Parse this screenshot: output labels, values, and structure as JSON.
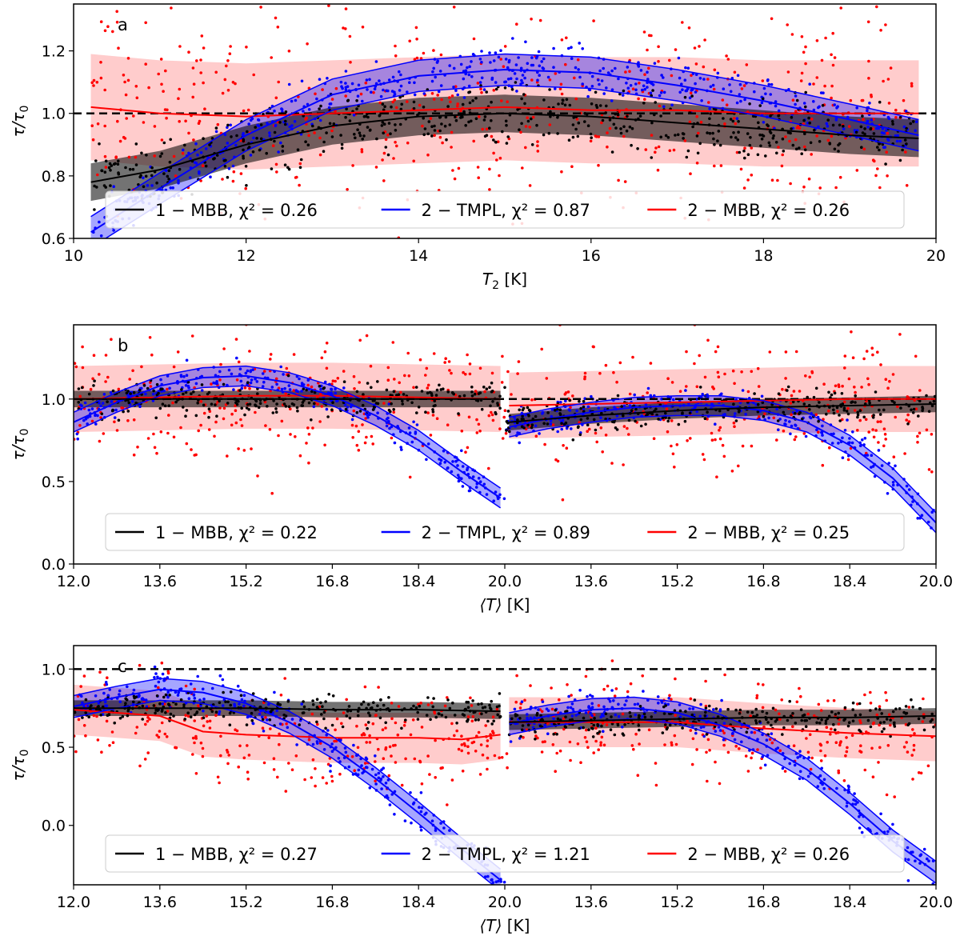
{
  "chart_data": [
    {
      "type": "scatter",
      "panel_label": "a",
      "xlabel": "T",
      "xlabel_sub": "2",
      "xlabel_unit": " [K]",
      "ylabel": "τ/τ",
      "ylabel_sub": "0",
      "xlim": [
        10,
        20
      ],
      "ylim": [
        0.6,
        1.35
      ],
      "xticks": [
        10,
        12,
        14,
        16,
        18,
        20
      ],
      "xtick_labels": [
        "10",
        "12",
        "14",
        "16",
        "18",
        "20"
      ],
      "yticks": [
        0.6,
        0.8,
        1.0,
        1.2
      ],
      "ytick_labels": [
        "0.6",
        "0.8",
        "1.0",
        "1.2"
      ],
      "reference_line": 1.0,
      "segments": [
        [
          10.2,
          19.8
        ]
      ],
      "legend": [
        "1 − MBB, χ² = 0.26",
        "2 − TMPL, χ² = 0.87",
        "2 − MBB, χ² = 0.26"
      ],
      "series": [
        {
          "name": "1-MBB",
          "color": "#000000",
          "x": [
            10.2,
            11,
            12,
            13,
            14,
            15,
            16,
            17,
            18,
            19,
            19.8
          ],
          "median": [
            0.78,
            0.82,
            0.9,
            0.96,
            0.99,
            1.0,
            0.99,
            0.97,
            0.95,
            0.93,
            0.92
          ],
          "band": 0.06,
          "scatter": 0.05
        },
        {
          "name": "2-TMPL",
          "color": "#0000ff",
          "x": [
            10.2,
            11,
            12,
            13,
            14,
            15,
            16,
            17,
            18,
            19,
            19.8
          ],
          "median": [
            0.62,
            0.76,
            0.93,
            1.06,
            1.12,
            1.14,
            1.13,
            1.09,
            1.04,
            0.98,
            0.93
          ],
          "band": 0.05,
          "scatter": 0.04
        },
        {
          "name": "2-MBB",
          "color": "#ff0000",
          "x": [
            10.2,
            11,
            12,
            13,
            14,
            15,
            16,
            17,
            18,
            19,
            19.8
          ],
          "median": [
            1.02,
            1.0,
            0.99,
            1.0,
            1.01,
            1.02,
            1.01,
            1.01,
            1.0,
            1.0,
            1.0
          ],
          "band": 0.17,
          "scatter": 0.16
        }
      ]
    },
    {
      "type": "scatter",
      "panel_label": "b",
      "xlabel": "⟨T⟩",
      "xlabel_sub": "",
      "xlabel_unit": " [K]",
      "ylabel": "τ/τ",
      "ylabel_sub": "0",
      "xlim": [
        0,
        2
      ],
      "ylim": [
        0.0,
        1.45
      ],
      "xticks": [
        0,
        0.2,
        0.4,
        0.6,
        0.8,
        1.0,
        1.2,
        1.4,
        1.6,
        1.8,
        2.0
      ],
      "xtick_labels": [
        "12.0",
        "13.6",
        "15.2",
        "16.8",
        "18.4",
        "20.0",
        "13.6",
        "15.2",
        "16.8",
        "18.4",
        "20.0"
      ],
      "yticks": [
        0.0,
        0.5,
        1.0
      ],
      "ytick_labels": [
        "0.0",
        "0.5",
        "1.0"
      ],
      "reference_line": 1.0,
      "segments": [
        [
          0,
          1.0
        ],
        [
          1.0,
          2.0
        ]
      ],
      "legend": [
        "1 − MBB, χ² = 0.22",
        "2 − TMPL, χ² = 0.89",
        "2 − MBB, χ² = 0.25"
      ],
      "series": [
        {
          "name": "1-MBB",
          "color": "#000000",
          "x": [
            0,
            0.2,
            0.4,
            0.6,
            0.8,
            0.99,
            1.01,
            1.2,
            1.4,
            1.6,
            1.8,
            2.0
          ],
          "median": [
            1.0,
            1.0,
            1.0,
            1.0,
            1.0,
            1.0,
            0.86,
            0.9,
            0.93,
            0.95,
            0.96,
            0.97
          ],
          "band": 0.05,
          "scatter": 0.05
        },
        {
          "name": "2-TMPL",
          "color": "#0000ff",
          "x": [
            0,
            0.1,
            0.2,
            0.3,
            0.4,
            0.5,
            0.6,
            0.7,
            0.8,
            0.9,
            0.99,
            1.01,
            1.1,
            1.2,
            1.3,
            1.4,
            1.5,
            1.6,
            1.7,
            1.8,
            1.9,
            2.0
          ],
          "median": [
            0.86,
            0.98,
            1.08,
            1.13,
            1.14,
            1.1,
            1.02,
            0.9,
            0.75,
            0.56,
            0.4,
            0.83,
            0.88,
            0.92,
            0.95,
            0.96,
            0.96,
            0.93,
            0.86,
            0.72,
            0.52,
            0.25
          ],
          "band": 0.06,
          "scatter": 0.05
        },
        {
          "name": "2-MBB",
          "color": "#ff0000",
          "x": [
            0,
            0.2,
            0.4,
            0.6,
            0.8,
            0.99,
            1.01,
            1.2,
            1.4,
            1.6,
            1.8,
            2.0
          ],
          "median": [
            1.0,
            1.01,
            1.02,
            1.02,
            1.01,
            1.0,
            0.96,
            0.97,
            0.98,
            0.99,
            1.0,
            1.0
          ],
          "band": 0.2,
          "scatter": 0.22
        }
      ]
    },
    {
      "type": "scatter",
      "panel_label": "c",
      "xlabel": "⟨T⟩",
      "xlabel_sub": "",
      "xlabel_unit": " [K]",
      "ylabel": "τ/τ",
      "ylabel_sub": "0",
      "xlim": [
        0,
        2
      ],
      "ylim": [
        -0.38,
        1.15
      ],
      "xticks": [
        0,
        0.2,
        0.4,
        0.6,
        0.8,
        1.0,
        1.2,
        1.4,
        1.6,
        1.8,
        2.0
      ],
      "xtick_labels": [
        "12.0",
        "13.6",
        "15.2",
        "16.8",
        "18.4",
        "20.0",
        "13.6",
        "15.2",
        "16.8",
        "18.4",
        "20.0"
      ],
      "yticks": [
        0.0,
        0.5,
        1.0
      ],
      "ytick_labels": [
        "0.0",
        "0.5",
        "1.0"
      ],
      "reference_line": 1.0,
      "segments": [
        [
          0,
          1.0
        ],
        [
          1.0,
          2.0
        ]
      ],
      "legend": [
        "1 − MBB, χ² = 0.27",
        "2 − TMPL, χ² = 1.21",
        "2 − MBB, χ² = 0.26"
      ],
      "series": [
        {
          "name": "1-MBB",
          "color": "#000000",
          "x": [
            0,
            0.2,
            0.4,
            0.6,
            0.8,
            0.99,
            1.01,
            1.2,
            1.4,
            1.6,
            1.8,
            2.0
          ],
          "median": [
            0.75,
            0.75,
            0.75,
            0.74,
            0.74,
            0.73,
            0.66,
            0.67,
            0.68,
            0.69,
            0.69,
            0.7
          ],
          "band": 0.05,
          "scatter": 0.05
        },
        {
          "name": "2-TMPL",
          "color": "#0000ff",
          "x": [
            0,
            0.1,
            0.2,
            0.3,
            0.4,
            0.5,
            0.6,
            0.7,
            0.8,
            0.9,
            0.99,
            1.01,
            1.1,
            1.2,
            1.3,
            1.4,
            1.5,
            1.6,
            1.7,
            1.8,
            1.9,
            2.0
          ],
          "median": [
            0.76,
            0.82,
            0.87,
            0.85,
            0.78,
            0.66,
            0.5,
            0.3,
            0.08,
            -0.15,
            -0.35,
            0.65,
            0.7,
            0.74,
            0.75,
            0.72,
            0.64,
            0.52,
            0.36,
            0.14,
            -0.1,
            -0.3
          ],
          "band": 0.07,
          "scatter": 0.06
        },
        {
          "name": "2-MBB",
          "color": "#ff0000",
          "x": [
            0,
            0.1,
            0.2,
            0.3,
            0.4,
            0.5,
            0.6,
            0.7,
            0.8,
            0.9,
            0.99,
            1.01,
            1.2,
            1.4,
            1.6,
            1.8,
            2.0
          ],
          "median": [
            0.74,
            0.72,
            0.7,
            0.6,
            0.58,
            0.57,
            0.56,
            0.56,
            0.56,
            0.55,
            0.58,
            0.66,
            0.66,
            0.66,
            0.62,
            0.59,
            0.57
          ],
          "band": 0.16,
          "scatter": 0.16
        }
      ]
    }
  ]
}
